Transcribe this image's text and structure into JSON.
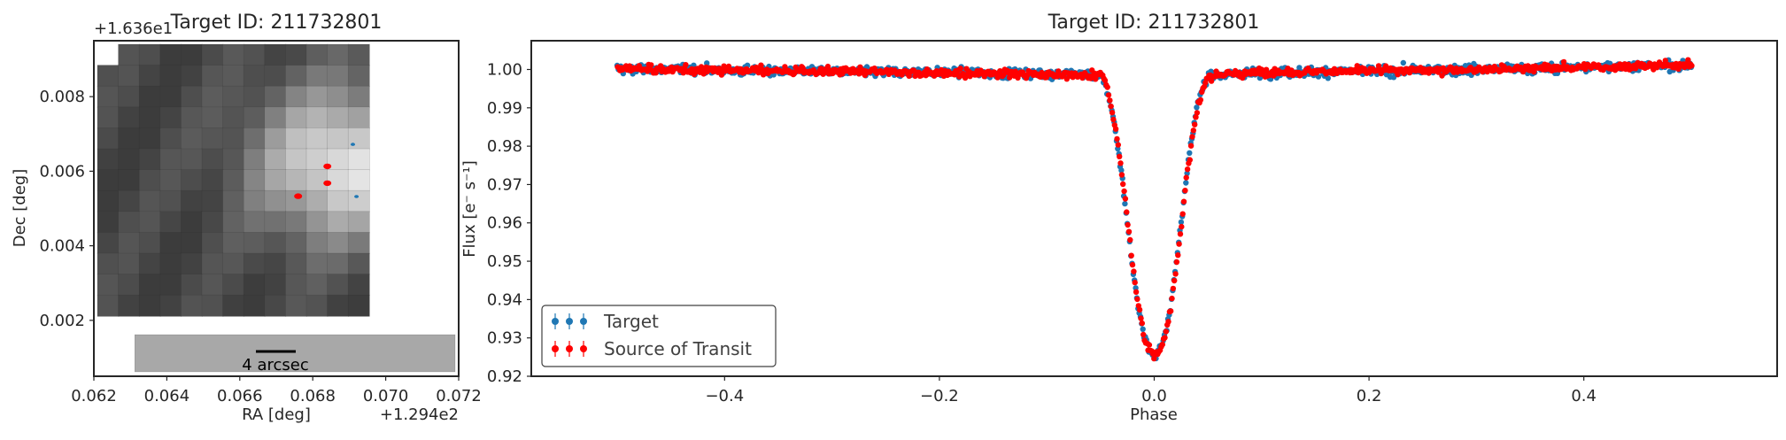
{
  "chart_data": [
    {
      "type": "heatmap",
      "title": "Target ID: 211732801",
      "xlabel": "RA [deg]",
      "ylabel": "Dec [deg]",
      "x_offset_label": "+1.294e2",
      "y_offset_label": "+1.636e1",
      "xlim": [
        0.062,
        0.072
      ],
      "ylim": [
        0.0005,
        0.0095
      ],
      "xticks": [
        0.062,
        0.064,
        0.066,
        0.068,
        0.07,
        0.072
      ],
      "xtick_labels": [
        "0.062",
        "0.064",
        "0.066",
        "0.068",
        "0.070",
        "0.072"
      ],
      "yticks": [
        0.002,
        0.004,
        0.006,
        0.008
      ],
      "ytick_labels": [
        "0.002",
        "0.004",
        "0.006",
        "0.008"
      ],
      "scale_bar_label": "4 arcsec",
      "colormap": "gray",
      "target_points": [
        {
          "ra": 0.0691,
          "dec": 0.00672
        },
        {
          "ra": 0.0692,
          "dec": 0.00532
        }
      ],
      "source_points": [
        {
          "ra": 0.0676,
          "dec": 0.00533
        },
        {
          "ra": 0.0684,
          "dec": 0.00568
        },
        {
          "ra": 0.0684,
          "dec": 0.00613
        }
      ],
      "colors": {
        "target": "#1f77b4",
        "source": "#ff0000"
      }
    },
    {
      "type": "scatter",
      "title": "Target ID: 211732801",
      "xlabel": "Phase",
      "ylabel": "Flux [e⁻ s⁻¹]",
      "xlim": [
        -0.58,
        0.58
      ],
      "ylim": [
        0.92,
        1.0075
      ],
      "xticks": [
        -0.4,
        -0.2,
        0.0,
        0.2,
        0.4
      ],
      "xtick_labels": [
        "−0.4",
        "−0.2",
        "0.0",
        "0.2",
        "0.4"
      ],
      "yticks": [
        0.92,
        0.93,
        0.94,
        0.95,
        0.96,
        0.97,
        0.98,
        0.99,
        1.0
      ],
      "ytick_labels": [
        "0.92",
        "0.93",
        "0.94",
        "0.95",
        "0.96",
        "0.97",
        "0.98",
        "0.99",
        "1.00"
      ],
      "grid": false,
      "legend": "lower-left",
      "series": [
        {
          "name": "Target",
          "color": "#1f77b4"
        },
        {
          "name": "Source of Transit",
          "color": "#ff0000"
        }
      ],
      "phase_range": [
        -0.5,
        0.5
      ],
      "transit_profile": {
        "x": [
          -0.5,
          -0.3,
          -0.1,
          -0.05,
          -0.045,
          -0.04,
          -0.035,
          -0.03,
          -0.025,
          -0.02,
          -0.015,
          -0.01,
          -0.005,
          0.0,
          0.005,
          0.01,
          0.015,
          0.02,
          0.025,
          0.03,
          0.035,
          0.04,
          0.045,
          0.05,
          0.1,
          0.3,
          0.5
        ],
        "y": [
          1.0002,
          0.9995,
          0.9988,
          0.9985,
          0.996,
          0.99,
          0.982,
          0.972,
          0.96,
          0.948,
          0.938,
          0.931,
          0.927,
          0.925,
          0.927,
          0.931,
          0.938,
          0.948,
          0.96,
          0.972,
          0.982,
          0.99,
          0.995,
          0.9985,
          0.9992,
          1.0,
          1.0012
        ]
      }
    }
  ]
}
